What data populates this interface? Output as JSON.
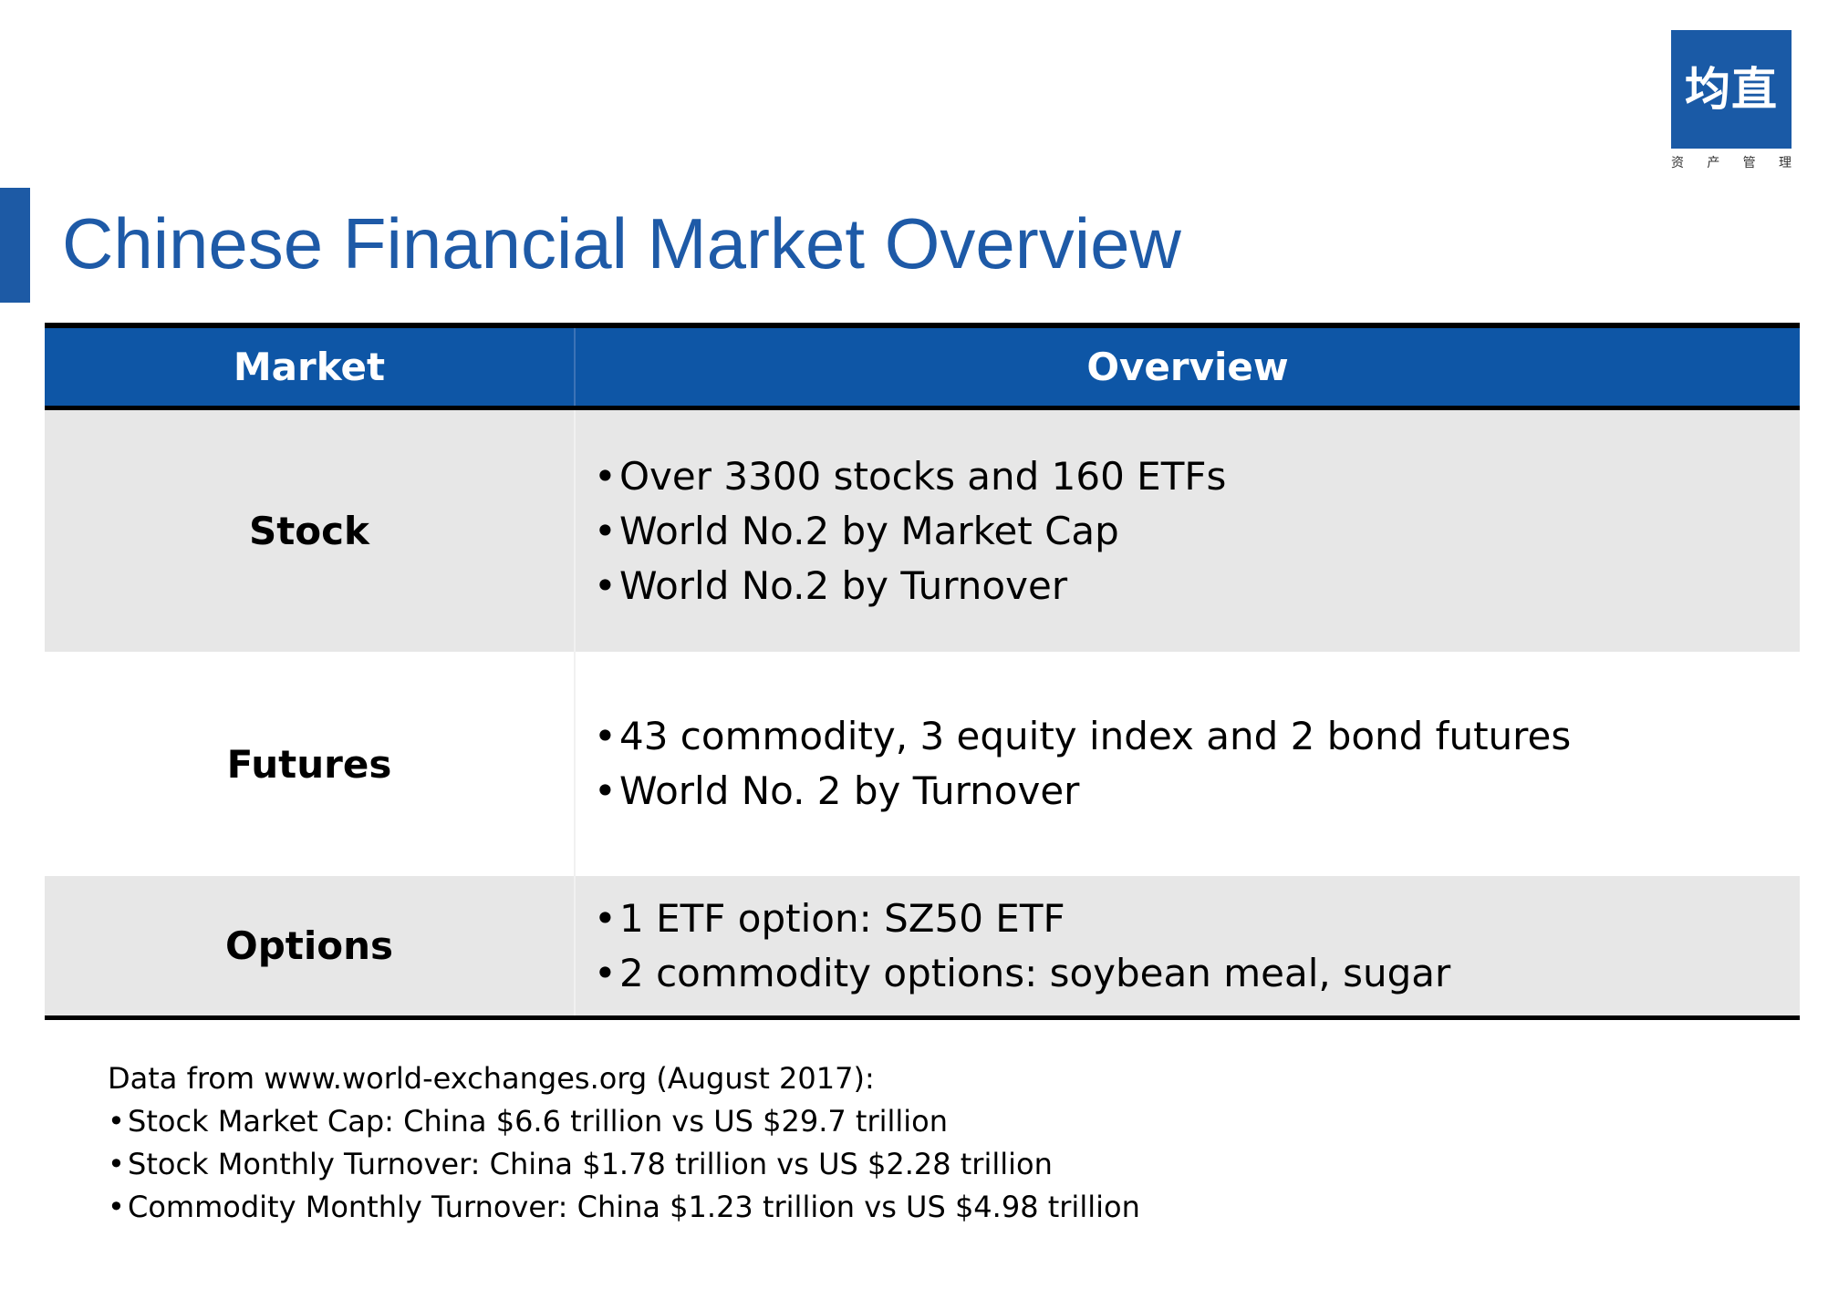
{
  "logo": {
    "mark": "均直",
    "subtitle_chars": [
      "资",
      "产",
      "管",
      "理"
    ]
  },
  "title": "Chinese Financial Market Overview",
  "table": {
    "headers": {
      "market": "Market",
      "overview": "Overview"
    },
    "rows": [
      {
        "market": "Stock",
        "points": [
          "Over 3300 stocks and 160 ETFs",
          "World No.2 by Market Cap",
          "World No.2 by Turnover"
        ]
      },
      {
        "market": "Futures",
        "points": [
          "43 commodity, 3 equity index and 2 bond futures",
          "World No. 2 by Turnover"
        ]
      },
      {
        "market": "Options",
        "points": [
          "1 ETF option: SZ50 ETF",
          "2 commodity options: soybean meal, sugar"
        ]
      }
    ]
  },
  "notes": {
    "heading": "Data from www.world-exchanges.org (August 2017):",
    "items": [
      "Stock Market Cap: China $6.6 trillion vs US $29.7 trillion",
      "Stock Monthly Turnover: China $1.78 trillion vs US $2.28 trillion",
      "Commodity Monthly Turnover: China $1.23 trillion vs US $4.98 trillion"
    ]
  },
  "bullet_glyph": "•",
  "colors": {
    "brand_blue": "#1a5aa6",
    "header_blue": "#0e56a6",
    "title_blue": "#1e5aa7",
    "row_shade": "#e7e7e7"
  }
}
